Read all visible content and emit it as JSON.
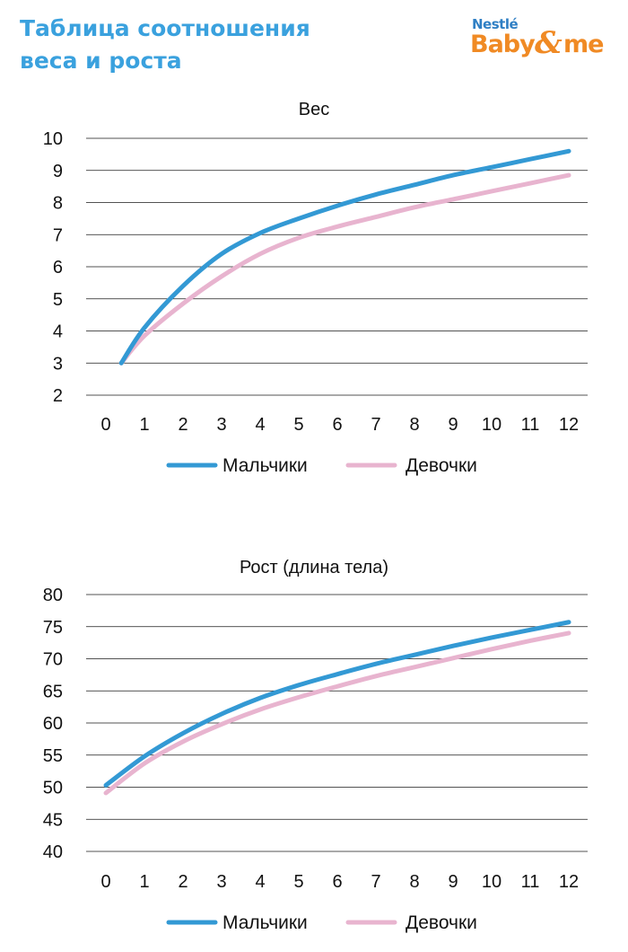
{
  "header": {
    "title_line1": "Таблица соотношения",
    "title_line2": "веса и роста",
    "logo": {
      "line1": "Nestlé",
      "line2_part1": "Baby",
      "amp": "&",
      "line2_part2": "me"
    }
  },
  "colors": {
    "boys": "#3399d4",
    "girls": "#e8b4cf",
    "grid": "#1a1a1a",
    "title": "#3aa1de",
    "logo_blue": "#2f7fc4",
    "logo_orange": "#f08a24"
  },
  "chart_data": [
    {
      "type": "line",
      "title": "Вес",
      "xlabel": "",
      "ylabel": "",
      "x_ticks": [
        0,
        1,
        2,
        3,
        4,
        5,
        6,
        7,
        8,
        9,
        10,
        11,
        12
      ],
      "y_ticks": [
        2,
        3,
        4,
        5,
        6,
        7,
        8,
        9,
        10
      ],
      "xlim": [
        0,
        12
      ],
      "ylim": [
        2,
        10
      ],
      "legend_position": "bottom",
      "grid": true,
      "series": [
        {
          "name": "Мальчики",
          "color": "#3399d4",
          "x": [
            0.4,
            1,
            2,
            3,
            4,
            5,
            6,
            7,
            8,
            9,
            10,
            11,
            12
          ],
          "y": [
            3.0,
            4.1,
            5.4,
            6.4,
            7.05,
            7.5,
            7.9,
            8.25,
            8.55,
            8.85,
            9.1,
            9.35,
            9.6
          ]
        },
        {
          "name": "Девочки",
          "color": "#e8b4cf",
          "x": [
            0.4,
            1,
            2,
            3,
            4,
            5,
            6,
            7,
            8,
            9,
            10,
            11,
            12
          ],
          "y": [
            3.0,
            3.85,
            4.85,
            5.7,
            6.4,
            6.9,
            7.25,
            7.55,
            7.85,
            8.1,
            8.35,
            8.6,
            8.85
          ]
        }
      ]
    },
    {
      "type": "line",
      "title": "Рост (длина тела)",
      "xlabel": "",
      "ylabel": "",
      "x_ticks": [
        0,
        1,
        2,
        3,
        4,
        5,
        6,
        7,
        8,
        9,
        10,
        11,
        12
      ],
      "y_ticks": [
        40,
        45,
        50,
        55,
        60,
        65,
        70,
        75,
        80
      ],
      "xlim": [
        0,
        12
      ],
      "ylim": [
        40,
        80
      ],
      "legend_position": "bottom",
      "grid": true,
      "series": [
        {
          "name": "Мальчики",
          "color": "#3399d4",
          "x": [
            0,
            1,
            2,
            3,
            4,
            5,
            6,
            7,
            8,
            9,
            10,
            11,
            12
          ],
          "y": [
            50.3,
            54.8,
            58.4,
            61.4,
            63.9,
            65.9,
            67.6,
            69.2,
            70.6,
            72.0,
            73.3,
            74.5,
            75.7
          ]
        },
        {
          "name": "Девочки",
          "color": "#e8b4cf",
          "x": [
            0,
            1,
            2,
            3,
            4,
            5,
            6,
            7,
            8,
            9,
            10,
            11,
            12
          ],
          "y": [
            49.1,
            53.7,
            57.1,
            59.8,
            62.1,
            64.0,
            65.7,
            67.3,
            68.7,
            70.1,
            71.5,
            72.8,
            74.0
          ]
        }
      ]
    }
  ]
}
